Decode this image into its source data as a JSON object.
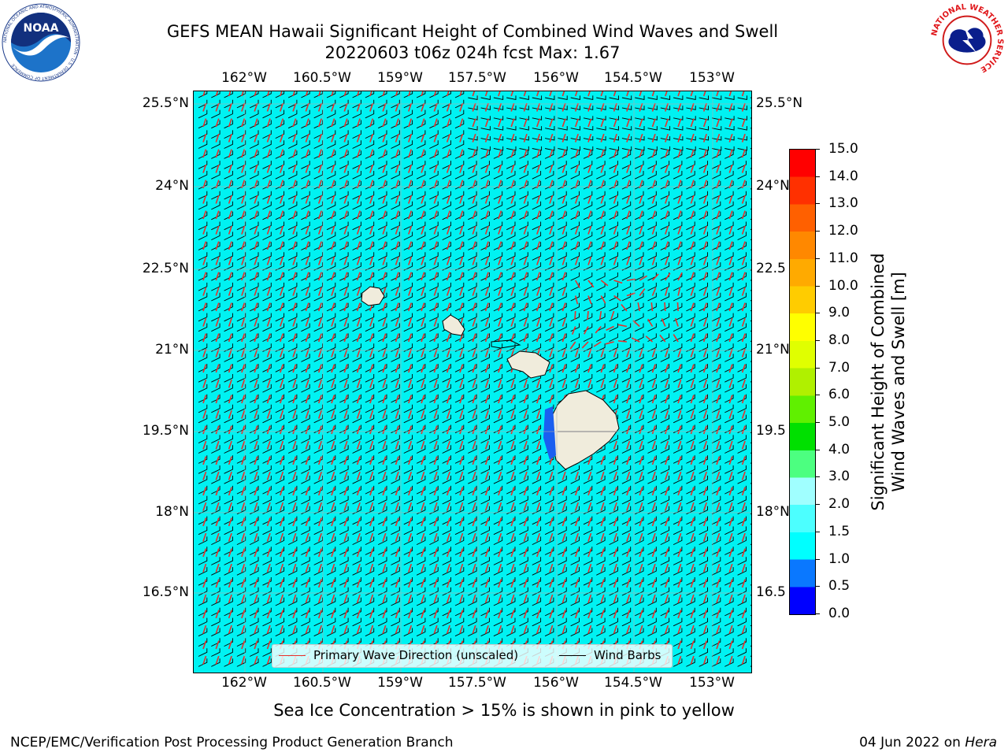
{
  "title": {
    "line1": "GEFS MEAN Hawaii Significant Height of Combined Wind Waves and Swell",
    "line2": "20220603 t06z 024h fcst   Max: 1.67"
  },
  "map": {
    "lon_labels": [
      "162°W",
      "160.5°W",
      "159°W",
      "157.5°W",
      "156°W",
      "154.5°W",
      "153°W"
    ],
    "lat_labels": [
      "25.5°N",
      "24°N",
      "22.5°N",
      "21°N",
      "19.5°N",
      "18°N",
      "16.5°N"
    ],
    "lat_labels_right": [
      "25.5°N",
      "24°N",
      "22.5",
      "21°N",
      "19.5",
      "18°N",
      "16.5"
    ],
    "ocean_color": "#00f2f2",
    "land_color": "#f0ecdc"
  },
  "legend": {
    "wave_dir_label": "Primary Wave Direction (unscaled)",
    "wind_barbs_label": "Wind Barbs",
    "wave_dir_color": "#e8302a",
    "wind_barbs_color": "#000000"
  },
  "colorbar": {
    "title_line1": "Significant Height of Combined",
    "title_line2": "Wind Waves and Swell [m]",
    "tick_labels": [
      "0.0",
      "0.5",
      "1.0",
      "1.5",
      "2.0",
      "3.0",
      "4.0",
      "5.0",
      "6.0",
      "7.0",
      "8.0",
      "9.0",
      "10.0",
      "11.0",
      "12.0",
      "13.0",
      "14.0",
      "15.0"
    ],
    "colors": [
      "#0000ff",
      "#0a78ff",
      "#00ffff",
      "#4cffff",
      "#a0ffff",
      "#4cff80",
      "#00e000",
      "#60f000",
      "#b0f000",
      "#e0ff00",
      "#ffff00",
      "#ffcc00",
      "#ffaa00",
      "#ff8800",
      "#ff6000",
      "#ff3000",
      "#ff0000"
    ]
  },
  "subtitle": "Sea Ice Concentration > 15% is shown in pink to yellow",
  "footer": {
    "left": "NCEP/EMC/Verification Post Processing Product Generation Branch",
    "right_date": "04 Jun 2022 on ",
    "right_host": "Hera"
  },
  "logos": {
    "noaa_text": "NOAA",
    "noaa_ring": "NATIONAL OCEANIC AND ATMOSPHERIC ADMINISTRATION · U.S. DEPARTMENT OF COMMERCE",
    "nws_ring": "NATIONAL WEATHER SERVICE"
  }
}
